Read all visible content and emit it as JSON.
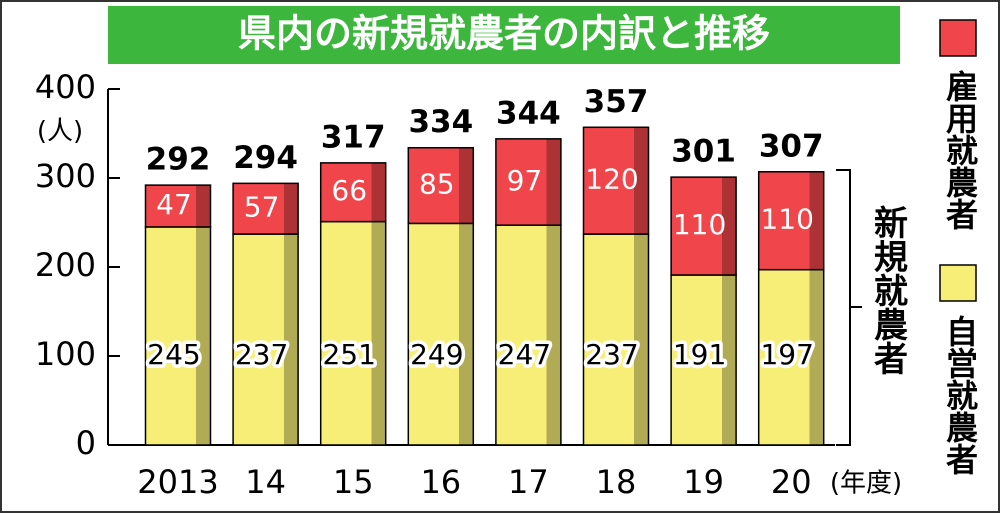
{
  "chart_data": {
    "type": "stacked_bar",
    "title": "県内の新規就農者の内訳と推移",
    "y_unit": "(人)",
    "x_unit": "(年度)",
    "categories": [
      "2013",
      "14",
      "15",
      "16",
      "17",
      "18",
      "19",
      "20"
    ],
    "series": [
      {
        "name": "自営就農者",
        "color": "#f7ee78",
        "values": [
          245,
          237,
          251,
          249,
          247,
          237,
          191,
          197
        ]
      },
      {
        "name": "雇用就農者",
        "color": "#f0454a",
        "values": [
          47,
          57,
          66,
          85,
          97,
          120,
          110,
          110
        ]
      }
    ],
    "totals": [
      292,
      294,
      317,
      334,
      344,
      357,
      301,
      307
    ],
    "bracket_label": "新規就農者",
    "ylim": [
      0,
      400
    ],
    "yticks": [
      0,
      100,
      200,
      300,
      400
    ]
  }
}
